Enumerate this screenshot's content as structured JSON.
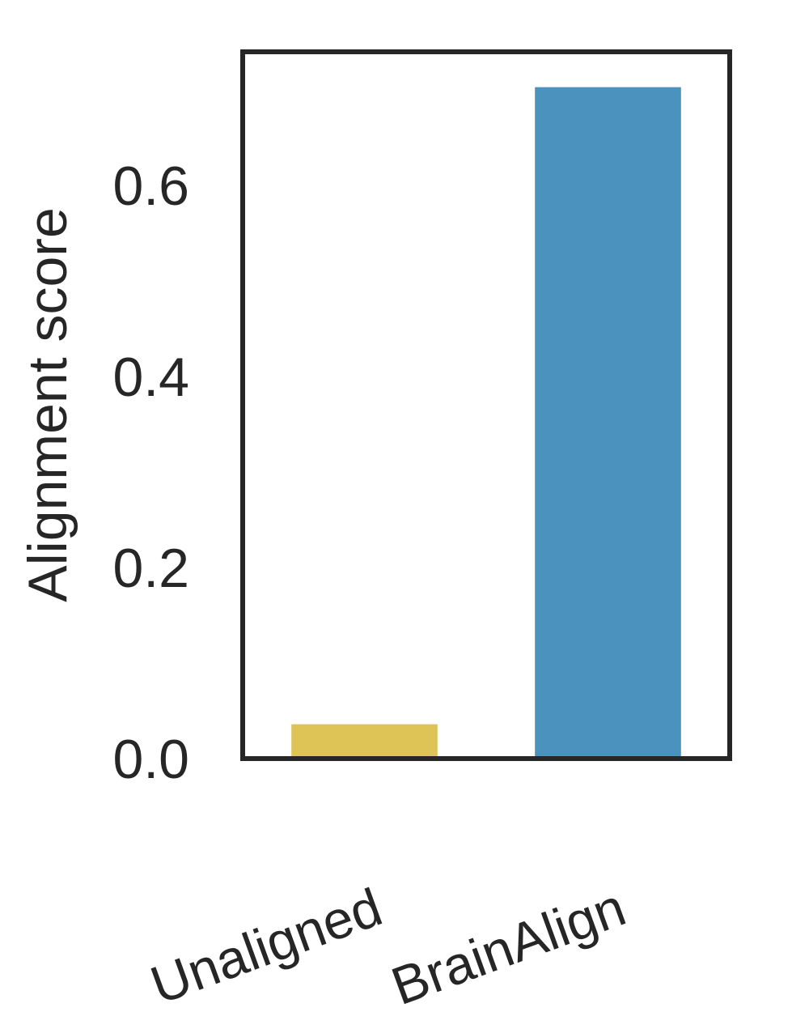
{
  "chart_data": {
    "type": "bar",
    "categories": [
      "Unaligned",
      "BrainAlign"
    ],
    "values": [
      0.036,
      0.703
    ],
    "colors": [
      "#dec357",
      "#4c92bf"
    ],
    "title": "",
    "xlabel": "",
    "ylabel": "Alignment score",
    "ylim": [
      0,
      0.74
    ],
    "yticks": [
      0.0,
      0.2,
      0.4,
      0.6
    ],
    "ytick_labels": [
      "0.0",
      "0.2",
      "0.4",
      "0.6"
    ],
    "grid": false,
    "legend": "none",
    "frame_color": "#262626"
  }
}
